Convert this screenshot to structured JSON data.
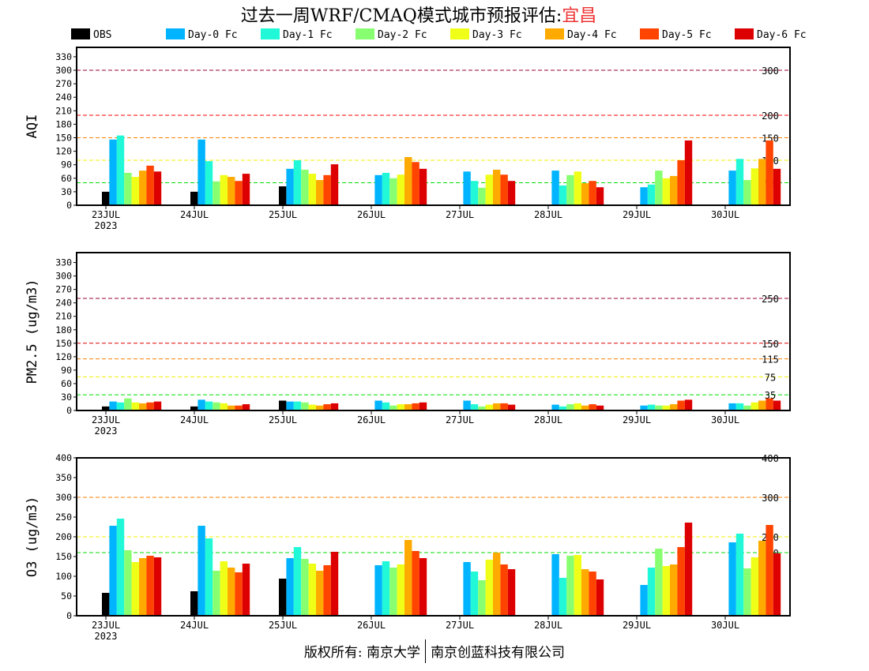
{
  "title": {
    "prefix": "过去一周WRF/CMAQ模式城市预报评估:",
    "city": "宜昌"
  },
  "footer": {
    "left": "版权所有: 南京大学",
    "right": "南京创蓝科技有限公司"
  },
  "legend": [
    {
      "label": "OBS",
      "color": "#000000"
    },
    {
      "label": "Day-0 Fc",
      "color": "#00b4ff"
    },
    {
      "label": "Day-1 Fc",
      "color": "#20f8d8"
    },
    {
      "label": "Day-2 Fc",
      "color": "#88ff70"
    },
    {
      "label": "Day-3 Fc",
      "color": "#f0ff18"
    },
    {
      "label": "Day-4 Fc",
      "color": "#ffaa00"
    },
    {
      "label": "Day-5 Fc",
      "color": "#ff4400"
    },
    {
      "label": "Day-6 Fc",
      "color": "#dd0000"
    }
  ],
  "chart_data": [
    {
      "type": "bar",
      "ylabel": "AQI",
      "ylim": [
        0,
        340
      ],
      "yticks": [
        0,
        30,
        60,
        90,
        120,
        150,
        180,
        210,
        240,
        270,
        300,
        330
      ],
      "categories": [
        "23JUL",
        "24JUL",
        "25JUL",
        "26JUL",
        "27JUL",
        "28JUL",
        "29JUL",
        "30JUL"
      ],
      "year_label": "2023",
      "thresholds": [
        {
          "value": 300,
          "label": "300",
          "color": "#990033"
        },
        {
          "value": 200,
          "label": "200",
          "color": "#ff0000"
        },
        {
          "value": 150,
          "label": "150",
          "color": "#ff7f00"
        },
        {
          "value": 100,
          "label": "100",
          "color": "#ffff00"
        },
        {
          "value": 50,
          "label": "50",
          "color": "#00dd00"
        }
      ],
      "series": [
        {
          "name": "OBS",
          "values": [
            30,
            30,
            42,
            null,
            null,
            null,
            null,
            null
          ]
        },
        {
          "name": "Day-0 Fc",
          "values": [
            146,
            146,
            81,
            67,
            75,
            77,
            40,
            77
          ]
        },
        {
          "name": "Day-1 Fc",
          "values": [
            155,
            98,
            100,
            72,
            54,
            44,
            46,
            103
          ]
        },
        {
          "name": "Day-2 Fc",
          "values": [
            72,
            53,
            79,
            60,
            39,
            67,
            77,
            56
          ]
        },
        {
          "name": "Day-3 Fc",
          "values": [
            63,
            67,
            70,
            68,
            68,
            75,
            60,
            82
          ]
        },
        {
          "name": "Day-4 Fc",
          "values": [
            77,
            63,
            56,
            107,
            79,
            49,
            65,
            103
          ]
        },
        {
          "name": "Day-5 Fc",
          "values": [
            88,
            54,
            67,
            96,
            68,
            54,
            100,
            144
          ]
        },
        {
          "name": "Day-6 Fc",
          "values": [
            75,
            70,
            91,
            81,
            54,
            40,
            144,
            81
          ]
        }
      ]
    },
    {
      "type": "bar",
      "ylabel": "PM2.5 (ug/m3)",
      "ylim": [
        0,
        340
      ],
      "yticks": [
        0,
        30,
        60,
        90,
        120,
        150,
        180,
        210,
        240,
        270,
        300,
        330
      ],
      "categories": [
        "23JUL",
        "24JUL",
        "25JUL",
        "26JUL",
        "27JUL",
        "28JUL",
        "29JUL",
        "30JUL"
      ],
      "year_label": "2023",
      "thresholds": [
        {
          "value": 250,
          "label": "250",
          "color": "#990033"
        },
        {
          "value": 150,
          "label": "150",
          "color": "#dd0000"
        },
        {
          "value": 115,
          "label": "115",
          "color": "#ff7f00"
        },
        {
          "value": 75,
          "label": "75",
          "color": "#ffff00"
        },
        {
          "value": 35,
          "label": "35",
          "color": "#00dd00"
        }
      ],
      "series": [
        {
          "name": "OBS",
          "values": [
            9,
            9,
            22,
            null,
            null,
            null,
            null,
            null
          ]
        },
        {
          "name": "Day-0 Fc",
          "values": [
            20,
            24,
            20,
            22,
            22,
            13,
            11,
            16
          ]
        },
        {
          "name": "Day-1 Fc",
          "values": [
            18,
            20,
            20,
            18,
            14,
            9,
            13,
            16
          ]
        },
        {
          "name": "Day-2 Fc",
          "values": [
            27,
            18,
            18,
            11,
            9,
            14,
            11,
            11
          ]
        },
        {
          "name": "Day-3 Fc",
          "values": [
            18,
            16,
            13,
            14,
            13,
            16,
            11,
            18
          ]
        },
        {
          "name": "Day-4 Fc",
          "values": [
            16,
            11,
            11,
            14,
            16,
            11,
            14,
            22
          ]
        },
        {
          "name": "Day-5 Fc",
          "values": [
            18,
            11,
            14,
            16,
            16,
            14,
            22,
            27
          ]
        },
        {
          "name": "Day-6 Fc",
          "values": [
            20,
            14,
            16,
            18,
            13,
            11,
            24,
            22
          ]
        }
      ]
    },
    {
      "type": "bar",
      "ylabel": "O3 (ug/m3)",
      "ylim": [
        0,
        400
      ],
      "yticks": [
        0,
        50,
        100,
        150,
        200,
        250,
        300,
        350,
        400
      ],
      "categories": [
        "23JUL",
        "24JUL",
        "25JUL",
        "26JUL",
        "27JUL",
        "28JUL",
        "29JUL",
        "30JUL"
      ],
      "year_label": "2023",
      "thresholds": [
        {
          "value": 400,
          "label": "400",
          "color": "#ff0000"
        },
        {
          "value": 300,
          "label": "300",
          "color": "#ff7f00"
        },
        {
          "value": 200,
          "label": "200",
          "color": "#ffff00"
        },
        {
          "value": 160,
          "label": "160",
          "color": "#00dd00"
        }
      ],
      "series": [
        {
          "name": "OBS",
          "values": [
            58,
            62,
            94,
            null,
            null,
            null,
            null,
            null
          ]
        },
        {
          "name": "Day-0 Fc",
          "values": [
            228,
            228,
            146,
            128,
            136,
            156,
            78,
            186
          ]
        },
        {
          "name": "Day-1 Fc",
          "values": [
            246,
            196,
            174,
            138,
            112,
            96,
            122,
            208
          ]
        },
        {
          "name": "Day-2 Fc",
          "values": [
            166,
            114,
            144,
            122,
            90,
            152,
            170,
            120
          ]
        },
        {
          "name": "Day-3 Fc",
          "values": [
            136,
            138,
            132,
            130,
            142,
            154,
            126,
            148
          ]
        },
        {
          "name": "Day-4 Fc",
          "values": [
            146,
            122,
            114,
            192,
            160,
            118,
            130,
            190
          ]
        },
        {
          "name": "Day-5 Fc",
          "values": [
            152,
            110,
            128,
            164,
            130,
            112,
            174,
            230
          ]
        },
        {
          "name": "Day-6 Fc",
          "values": [
            148,
            132,
            162,
            146,
            118,
            92,
            236,
            158
          ]
        }
      ]
    }
  ]
}
